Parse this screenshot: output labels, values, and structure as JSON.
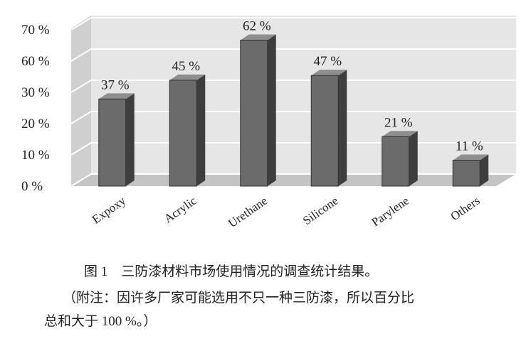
{
  "chart_data": {
    "type": "bar3d",
    "categories": [
      "Expoxy",
      "Acrylic",
      "Urethane",
      "Silicone",
      "Parylene",
      "Others"
    ],
    "values": [
      37,
      45,
      62,
      47,
      21,
      11
    ],
    "value_labels": [
      "37 %",
      "45 %",
      "62 %",
      "47 %",
      "21 %",
      "11 %"
    ],
    "color": "#6b6b6b",
    "ylim": [
      0,
      70
    ],
    "yticks": [
      {
        "value": 70,
        "label": "70 %"
      },
      {
        "value": 60,
        "label": "60 %"
      },
      {
        "value": 30,
        "label": "30 %"
      },
      {
        "value": 20,
        "label": "20 %"
      },
      {
        "value": 10,
        "label": "10 %"
      },
      {
        "value": 0,
        "label": "0 %"
      }
    ],
    "grid": true
  },
  "caption": {
    "title": "图 1　三防漆材料市场使用情况的调查统计结果。",
    "note": [
      "（附注：因许多厂家可能选用不只一种三防漆，所以百分比",
      "总和大于 100 %。）"
    ]
  }
}
